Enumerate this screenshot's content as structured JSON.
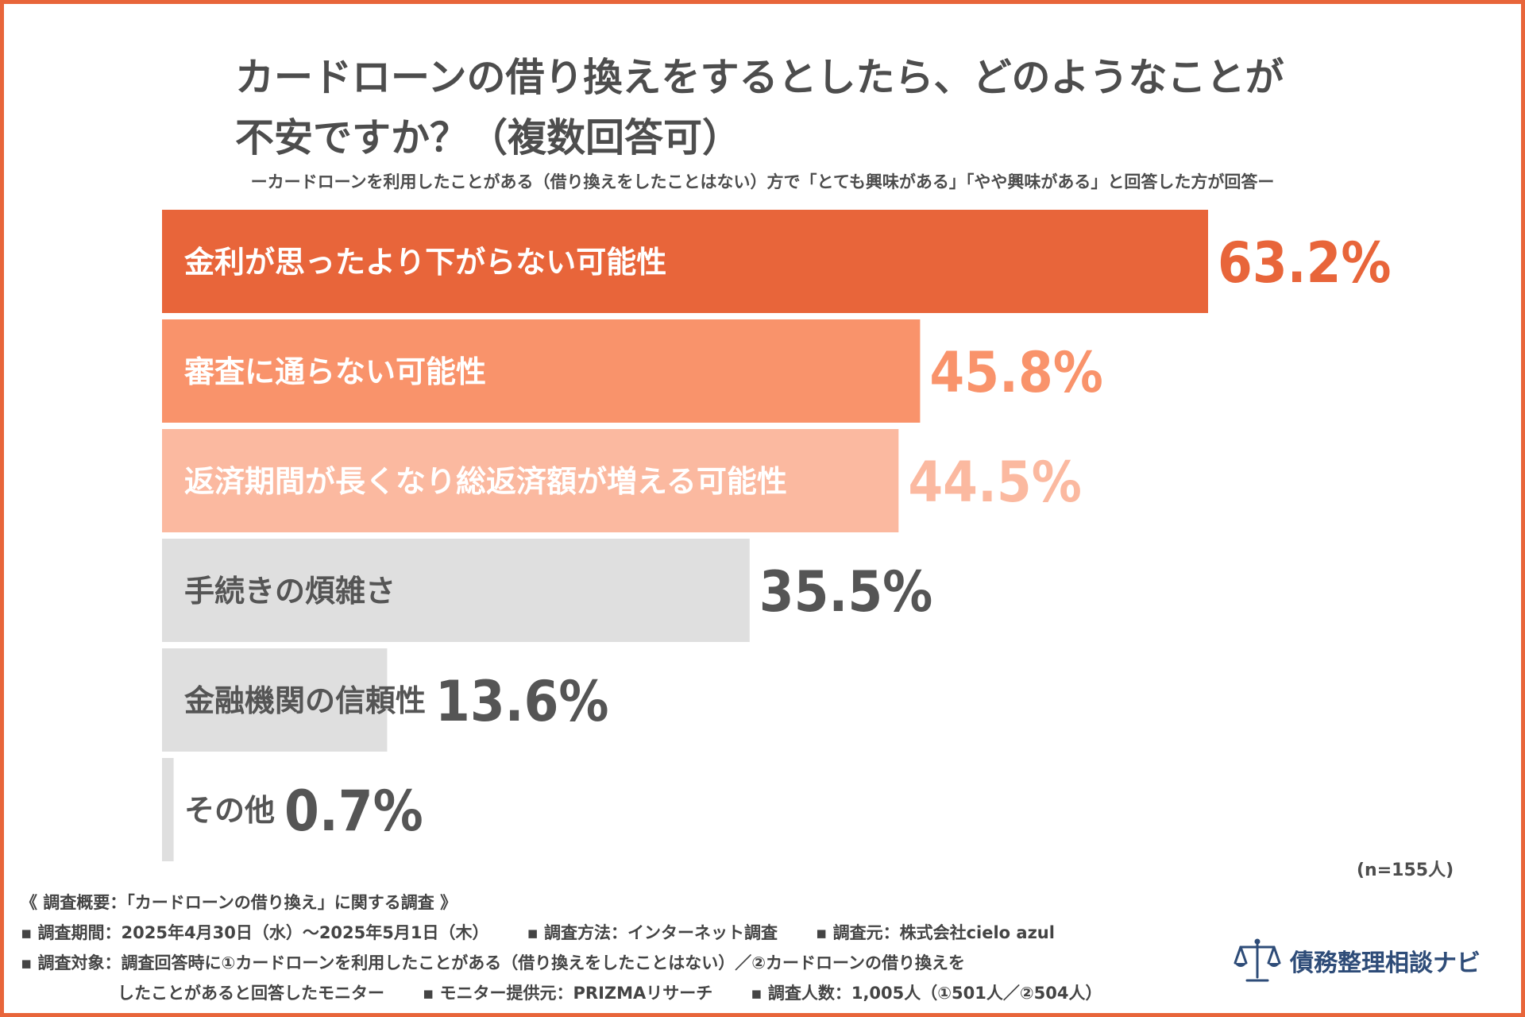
{
  "title_line1": "カードローンの借り換えをするとしたら、どのようなことが",
  "title_line2": "不安ですか？（複数回答可）",
  "subtitle": "ーカードローンを利用したことがある（借り換えをしたことはない）方で「とても興味がある」「やや興味がある」と回答した方が回答ー",
  "chart_data": {
    "type": "bar",
    "orientation": "horizontal",
    "categories": [
      "金利が思ったより下がらない可能性",
      "審査に通らない可能性",
      "返済期間が長くなり総返済額が増える可能性",
      "手続きの煩雑さ",
      "金融機関の信頼性",
      "その他"
    ],
    "values": [
      63.2,
      45.8,
      44.5,
      35.5,
      13.6,
      0.7
    ],
    "value_labels": [
      "63.2%",
      "45.8%",
      "44.5%",
      "35.5%",
      "13.6%",
      "0.7%"
    ],
    "unit": "%",
    "bar_colors": [
      "#e8653a",
      "#f9936b",
      "#fbb9a0",
      "#dfdfdf",
      "#dfdfdf",
      "#dfdfdf"
    ],
    "label_colors": [
      "#ffffff",
      "#ffffff",
      "#ffffff",
      "#555555",
      "#555555",
      "#555555"
    ],
    "value_colors": [
      "#e8653a",
      "#f9936b",
      "#fbb9a0",
      "#555555",
      "#555555",
      "#555555"
    ],
    "note": "(n=155人)"
  },
  "footer": {
    "line1": "《 調査概要：「カードローンの借り換え」に関する調査 》",
    "line2a": "▪ 調査期間：2025年4月30日（水）～2025年5月1日（木）",
    "line2b": "▪ 調査方法：インターネット調査",
    "line2c": "▪ 調査元：株式会社cielo azul",
    "line3": "▪ 調査対象：調査回答時に①カードローンを利用したことがある（借り換えをしたことはない）／②カードローンの借り換えを",
    "line4a": "したことがあると回答したモニター",
    "line4b": "▪ モニター提供元：PRIZMAリサーチ",
    "line4c": "▪ 調査人数：1,005人（①501人／②504人）"
  },
  "logo": {
    "text": "債務整理相談ナビ",
    "icon": "scales-of-justice-icon",
    "color": "#2e4c78"
  }
}
